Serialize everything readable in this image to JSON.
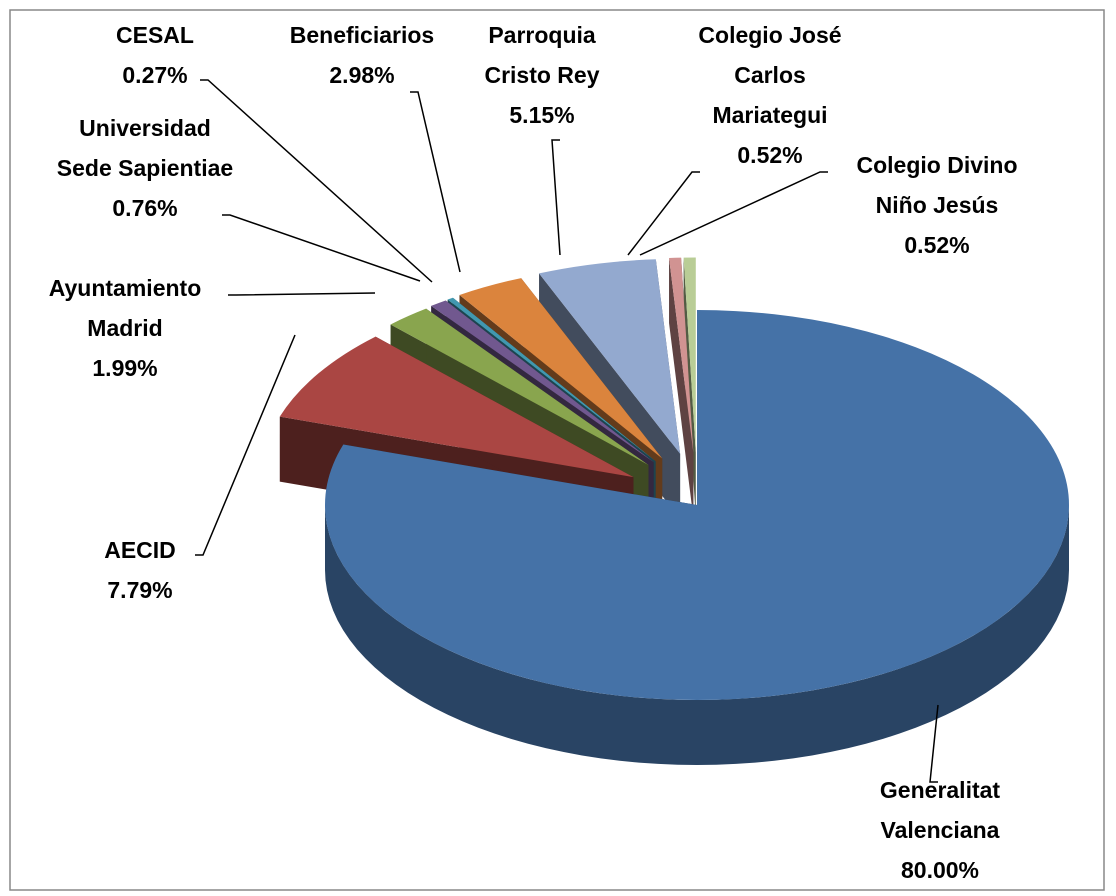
{
  "chart_data": {
    "type": "pie",
    "categories": [
      "Generalitat Valenciana",
      "AECID",
      "Ayuntamiento Madrid",
      "Universidad Sede Sapientiae",
      "CESAL",
      "Beneficiarios",
      "Parroquia Cristo Rey",
      "Colegio José Carlos Mariategui",
      "Colegio Divino Niño Jesús"
    ],
    "values": [
      80.0,
      7.79,
      1.99,
      0.76,
      0.27,
      2.98,
      5.15,
      0.52,
      0.52
    ],
    "value_labels": [
      "80.00%",
      "7.79%",
      "1.99%",
      "0.76%",
      "0.27%",
      "2.98%",
      "5.15%",
      "0.52%",
      "0.52%"
    ],
    "colors": [
      "#4572a7",
      "#aa4643",
      "#89a54e",
      "#71588f",
      "#4198af",
      "#db843d",
      "#93a9cf",
      "#d19392",
      "#b9cd96"
    ]
  }
}
